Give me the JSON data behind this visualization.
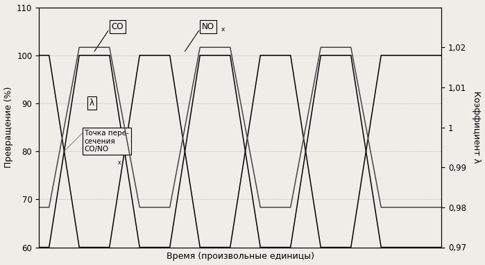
{
  "xlabel": "Время (произвольные единицы)",
  "ylabel_left": "Превращение (%)",
  "ylabel_right": "Коэффициент λ",
  "bg_color": "#f0ede8",
  "left_ylim": [
    60,
    110
  ],
  "left_yticks": [
    60,
    70,
    80,
    90,
    100,
    110
  ],
  "right_ylim": [
    0.97,
    1.03
  ],
  "right_yticks": [
    0.97,
    0.98,
    0.99,
    1.0,
    1.01,
    1.02
  ],
  "right_yticklabels": [
    "0,97",
    "0,98",
    "0,99",
    "1",
    "1,01",
    "1,02"
  ],
  "co_color": "#000000",
  "nox_color": "#000000",
  "lambda_color": "#444444",
  "t_co": [
    0,
    0.5,
    2.0,
    3.5,
    5.0,
    6.5,
    8.0,
    9.5,
    11.0,
    12.5,
    14.0,
    15.5,
    17.0,
    18.5,
    20.0
  ],
  "co_y": [
    100,
    100,
    60,
    60,
    100,
    100,
    60,
    60,
    100,
    100,
    60,
    60,
    100,
    100,
    100
  ],
  "t_nox": [
    0,
    0.5,
    2.0,
    3.5,
    5.0,
    6.5,
    8.0,
    9.5,
    11.0,
    12.5,
    14.0,
    15.5,
    17.0,
    18.5,
    20.0
  ],
  "nox_y": [
    60,
    60,
    100,
    100,
    60,
    60,
    100,
    100,
    60,
    60,
    100,
    100,
    60,
    60,
    60
  ],
  "t_lam": [
    0,
    0.5,
    2.0,
    3.5,
    5.0,
    6.5,
    8.0,
    9.5,
    11.0,
    12.5,
    14.0,
    15.5,
    17.0,
    18.5,
    20.0
  ],
  "lam_y": [
    0.98,
    0.98,
    1.02,
    1.02,
    0.98,
    0.98,
    1.02,
    1.02,
    0.98,
    0.98,
    1.02,
    1.02,
    0.98,
    0.98,
    0.98
  ],
  "co_label": "CO",
  "nox_label_main": "NO",
  "nox_label_sub": "x",
  "lambda_label": "λ",
  "intersection_label": "Точка пере-\nсечения\nCO/NO",
  "intersection_sub": "x",
  "xlim": [
    0,
    20
  ]
}
